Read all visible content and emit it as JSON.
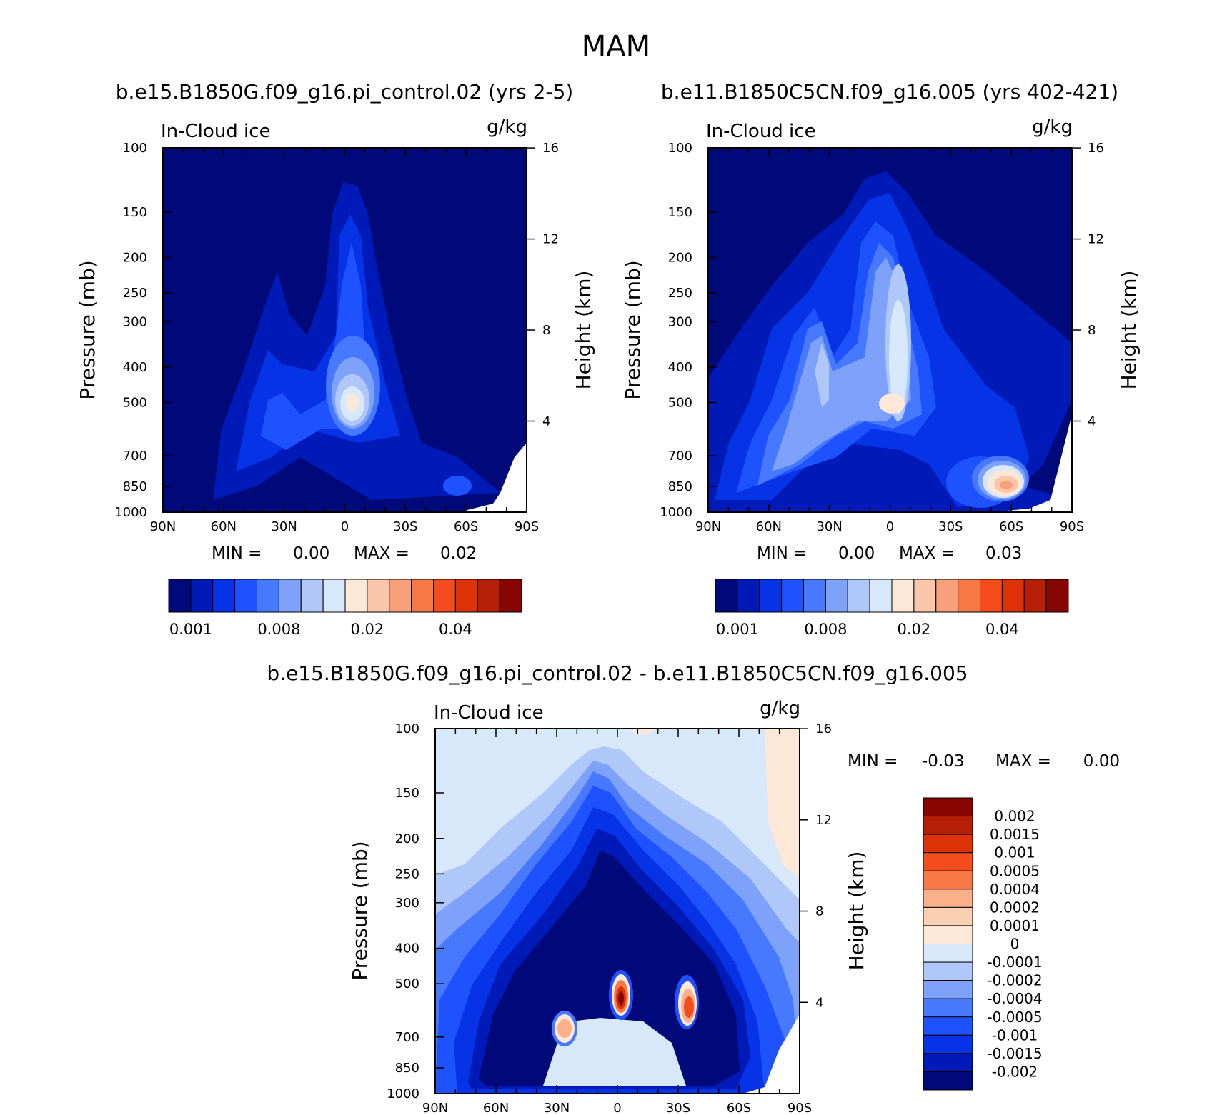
{
  "figure": {
    "title": "MAM",
    "panels": [
      {
        "id": "a",
        "title": "b.e15.B1850G.f09_g16.pi_control.02 (yrs 2-5)",
        "variable": "In-Cloud ice",
        "units": "g/kg",
        "min_label": "MIN =",
        "min_value": "0.00",
        "max_label": "MAX =",
        "max_value": "0.02"
      },
      {
        "id": "b",
        "title": "b.e11.B1850C5CN.f09_g16.005 (yrs 402-421)",
        "variable": "In-Cloud ice",
        "units": "g/kg",
        "min_label": "MIN =",
        "min_value": "0.00",
        "max_label": "MAX =",
        "max_value": "0.03"
      },
      {
        "id": "diff",
        "title": "b.e15.B1850G.f09_g16.pi_control.02 - b.e11.B1850C5CN.f09_g16.005",
        "variable": "In-Cloud ice",
        "units": "g/kg",
        "min_label": "MIN =",
        "min_value": "-0.03",
        "max_label": "MAX =",
        "max_value": "0.00"
      }
    ],
    "colorbar_top": {
      "colors": [
        "#00097a",
        "#001ab8",
        "#0633e6",
        "#1f52ff",
        "#4779ff",
        "#7ea1fa",
        "#b0c7fa",
        "#d8e8fb",
        "#fde8d7",
        "#fbc6a9",
        "#f7a07a",
        "#f57845",
        "#f44c1c",
        "#dd3208",
        "#b51f05",
        "#870602"
      ],
      "labels": [
        "0.001",
        "0.008",
        "0.02",
        "0.04"
      ]
    },
    "colorbar_diff": {
      "colors_top_to_bottom": [
        "#870602",
        "#b51f05",
        "#dd3208",
        "#f44c1c",
        "#f57845",
        "#fbb08a",
        "#fbd0b2",
        "#fde8d7",
        "#d8e8fb",
        "#b0c7fa",
        "#7ea1fa",
        "#4779ff",
        "#1f52ff",
        "#0633e6",
        "#001ab8",
        "#00097a"
      ],
      "labels": [
        "0.002",
        "0.0015",
        "0.001",
        "0.0005",
        "0.0004",
        "0.0002",
        "0.0001",
        "0",
        "-0.0001",
        "-0.0002",
        "-0.0004",
        "-0.0005",
        "-0.001",
        "-0.0015",
        "-0.002"
      ]
    }
  },
  "chart_data": [
    {
      "type": "heatmap",
      "subtype": "filled-contour latitude-pressure cross section",
      "title": "b.e15.B1850G.f09_g16.pi_control.02 (yrs 2-5)",
      "variable": "In-Cloud ice",
      "units": "g/kg",
      "xlabel": "",
      "ylabel": "Pressure (mb)",
      "y2label": "Height (km)",
      "x_ticks": [
        "90N",
        "60N",
        "30N",
        "0",
        "30S",
        "60S",
        "90S"
      ],
      "y_ticks": [
        100,
        150,
        200,
        250,
        300,
        400,
        500,
        700,
        850,
        1000
      ],
      "y2_ticks": [
        4,
        8,
        12,
        16
      ],
      "ylim": [
        1000,
        100
      ],
      "min": 0.0,
      "max": 0.02,
      "features": [
        {
          "lat": 0,
          "p": 500,
          "value": 0.02,
          "desc": "maximum near equator 500 mb"
        },
        {
          "lat": 35,
          "p": 550,
          "value": 0.005,
          "desc": "northern midlatitude maximum"
        },
        {
          "lat": -55,
          "p": 800,
          "value": 0.003,
          "desc": "southern storm track"
        }
      ]
    },
    {
      "type": "heatmap",
      "subtype": "filled-contour latitude-pressure cross section",
      "title": "b.e11.B1850C5CN.f09_g16.005 (yrs 402-421)",
      "variable": "In-Cloud ice",
      "units": "g/kg",
      "xlabel": "",
      "ylabel": "Pressure (mb)",
      "y2label": "Height (km)",
      "x_ticks": [
        "90N",
        "60N",
        "30N",
        "0",
        "30S",
        "60S",
        "90S"
      ],
      "y_ticks": [
        100,
        150,
        200,
        250,
        300,
        400,
        500,
        700,
        850,
        1000
      ],
      "y2_ticks": [
        4,
        8,
        12,
        16
      ],
      "ylim": [
        1000,
        100
      ],
      "min": 0.0,
      "max": 0.03,
      "features": [
        {
          "lat": 0,
          "p": 500,
          "value": 0.02,
          "desc": "equatorial column maximum"
        },
        {
          "lat": 35,
          "p": 400,
          "value": 0.01,
          "desc": "northern midlatitude column"
        },
        {
          "lat": -55,
          "p": 830,
          "value": 0.03,
          "desc": "southern high-latitude maximum"
        }
      ]
    },
    {
      "type": "heatmap",
      "subtype": "filled-contour difference latitude-pressure cross section",
      "title": "b.e15.B1850G.f09_g16.pi_control.02 - b.e11.B1850C5CN.f09_g16.005",
      "variable": "In-Cloud ice",
      "units": "g/kg",
      "xlabel": "",
      "ylabel": "Pressure (mb)",
      "y2label": "Height (km)",
      "x_ticks": [
        "90N",
        "60N",
        "30N",
        "0",
        "30S",
        "60S",
        "90S"
      ],
      "y_ticks": [
        100,
        150,
        200,
        250,
        300,
        400,
        500,
        700,
        850,
        1000
      ],
      "y2_ticks": [
        4,
        8,
        12,
        16
      ],
      "ylim": [
        1000,
        100
      ],
      "min": -0.03,
      "max": 0.0,
      "features": [
        {
          "lat": 0,
          "p": 570,
          "value": 0.002,
          "desc": "positive difference near equator"
        },
        {
          "lat": 30,
          "p": 640,
          "value": 0.0005,
          "desc": "positive difference 30N"
        },
        {
          "lat": -30,
          "p": 590,
          "value": 0.0015,
          "desc": "positive difference 30S"
        },
        {
          "lat": 0,
          "p": 300,
          "value": -0.002,
          "desc": "broad negative difference in troposphere"
        }
      ]
    }
  ]
}
